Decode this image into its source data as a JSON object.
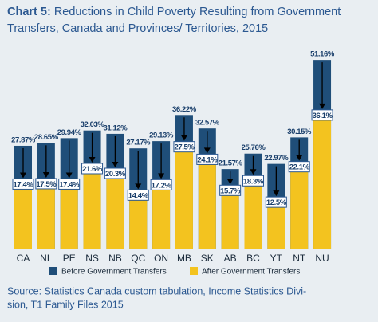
{
  "chart_data": {
    "type": "bar",
    "title_prefix": "Chart 5:",
    "title": [
      "Reductions in Child Poverty Resulting from Government",
      "Transfers, Canada and Provinces/ Territories, 2015"
    ],
    "categories": [
      "CA",
      "NL",
      "PE",
      "NS",
      "NB",
      "QC",
      "ON",
      "MB",
      "SK",
      "AB",
      "BC",
      "YT",
      "NT",
      "NU"
    ],
    "series": [
      {
        "name": "Before Government Transfers",
        "color": "#1f4e79",
        "values": [
          27.87,
          28.65,
          29.94,
          32.03,
          31.12,
          27.17,
          29.13,
          36.22,
          32.57,
          21.57,
          25.76,
          22.97,
          30.15,
          51.16
        ],
        "value_labels": [
          "27.87%",
          "28.65%",
          "29.94%",
          "32.03%",
          "31.12%",
          "27.17%",
          "29.13%",
          "36.22%",
          "32.57%",
          "21.57%",
          "25.76%",
          "22.97%",
          "30.15%",
          "51.16%"
        ]
      },
      {
        "name": "After Government Transfers",
        "color": "#f3c31f",
        "values": [
          17.4,
          17.5,
          17.4,
          21.6,
          20.3,
          14.4,
          17.2,
          27.5,
          24.1,
          15.7,
          18.3,
          12.5,
          22.1,
          36.1
        ],
        "value_labels": [
          "17.4%",
          "17.5%",
          "17.4%",
          "21.6%",
          "20.3%",
          "14.4%",
          "17.2%",
          "27.5%",
          "24.1%",
          "15.7%",
          "18.3%",
          "12.5%",
          "22.1%",
          "36.1%"
        ]
      }
    ],
    "source": [
      "Source: Statistics Canada custom tabulation, Income Statistics Divi-",
      "sion, T1 Family Files 2015"
    ]
  }
}
